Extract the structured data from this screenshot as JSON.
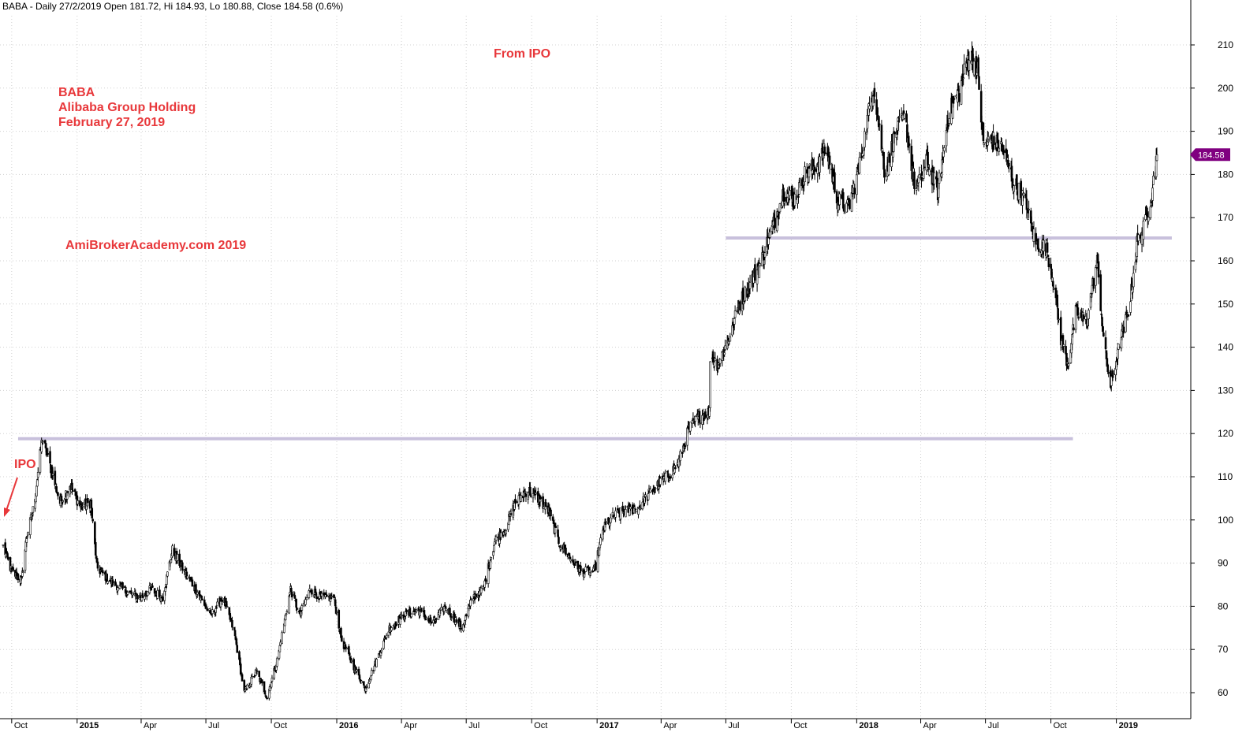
{
  "header": {
    "title": "BABA - Daily 27/2/2019 Open 181.72, Hi 184.93, Lo 180.88, Close 184.58 (0.6%)"
  },
  "annotations": {
    "from_ipo": "From IPO",
    "ticker": "BABA",
    "company": "Alibaba Group Holding",
    "date": "February 27, 2019",
    "watermark": "AmiBrokerAcademy.com  2019",
    "ipo": "IPO",
    "color": "#e8383b"
  },
  "last_price": {
    "label": "184.58",
    "value": 184.58,
    "color": "#800080"
  },
  "chart_data": {
    "type": "line",
    "style": "candlestick",
    "ticker": "BABA",
    "y_range": [
      55,
      215
    ],
    "y_ticks": [
      60,
      70,
      80,
      90,
      100,
      110,
      120,
      130,
      140,
      150,
      160,
      170,
      180,
      190,
      200,
      210
    ],
    "x_ticks": [
      {
        "label": "Oct",
        "date": "2014-10",
        "bold": false
      },
      {
        "label": "2015",
        "date": "2015-01",
        "bold": true
      },
      {
        "label": "Apr",
        "date": "2015-04",
        "bold": false
      },
      {
        "label": "Jul",
        "date": "2015-07",
        "bold": false
      },
      {
        "label": "Oct",
        "date": "2015-10",
        "bold": false
      },
      {
        "label": "2016",
        "date": "2016-01",
        "bold": true
      },
      {
        "label": "Apr",
        "date": "2016-04",
        "bold": false
      },
      {
        "label": "Jul",
        "date": "2016-07",
        "bold": false
      },
      {
        "label": "Oct",
        "date": "2016-10",
        "bold": false
      },
      {
        "label": "2017",
        "date": "2017-01",
        "bold": true
      },
      {
        "label": "Apr",
        "date": "2017-04",
        "bold": false
      },
      {
        "label": "Jul",
        "date": "2017-07",
        "bold": false
      },
      {
        "label": "Oct",
        "date": "2017-10",
        "bold": false
      },
      {
        "label": "2018",
        "date": "2018-01",
        "bold": true
      },
      {
        "label": "Apr",
        "date": "2018-04",
        "bold": false
      },
      {
        "label": "Jul",
        "date": "2018-07",
        "bold": false
      },
      {
        "label": "Oct",
        "date": "2018-10",
        "bold": false
      },
      {
        "label": "2019",
        "date": "2019-01",
        "bold": true
      }
    ],
    "price_points": [
      {
        "date": "2014-09-19",
        "close": 93.9
      },
      {
        "date": "2014-10-01",
        "close": 88
      },
      {
        "date": "2014-10-15",
        "close": 86
      },
      {
        "date": "2014-10-22",
        "close": 96
      },
      {
        "date": "2014-11-01",
        "close": 103
      },
      {
        "date": "2014-11-13",
        "close": 119
      },
      {
        "date": "2014-11-25",
        "close": 112
      },
      {
        "date": "2014-12-08",
        "close": 104
      },
      {
        "date": "2014-12-22",
        "close": 108
      },
      {
        "date": "2015-01-06",
        "close": 103
      },
      {
        "date": "2015-01-20",
        "close": 104
      },
      {
        "date": "2015-01-29",
        "close": 89
      },
      {
        "date": "2015-02-15",
        "close": 86
      },
      {
        "date": "2015-03-15",
        "close": 83
      },
      {
        "date": "2015-04-01",
        "close": 82
      },
      {
        "date": "2015-04-15",
        "close": 84
      },
      {
        "date": "2015-05-01",
        "close": 82
      },
      {
        "date": "2015-05-15",
        "close": 93
      },
      {
        "date": "2015-06-01",
        "close": 88
      },
      {
        "date": "2015-06-20",
        "close": 83
      },
      {
        "date": "2015-07-08",
        "close": 78
      },
      {
        "date": "2015-07-25",
        "close": 82
      },
      {
        "date": "2015-08-10",
        "close": 74
      },
      {
        "date": "2015-08-24",
        "close": 60
      },
      {
        "date": "2015-09-10",
        "close": 65
      },
      {
        "date": "2015-09-25",
        "close": 59
      },
      {
        "date": "2015-10-10",
        "close": 68
      },
      {
        "date": "2015-10-28",
        "close": 84
      },
      {
        "date": "2015-11-10",
        "close": 78
      },
      {
        "date": "2015-11-25",
        "close": 84
      },
      {
        "date": "2015-12-10",
        "close": 82
      },
      {
        "date": "2015-12-28",
        "close": 82
      },
      {
        "date": "2016-01-08",
        "close": 72
      },
      {
        "date": "2016-01-25",
        "close": 66
      },
      {
        "date": "2016-02-10",
        "close": 61
      },
      {
        "date": "2016-02-25",
        "close": 67
      },
      {
        "date": "2016-03-15",
        "close": 75
      },
      {
        "date": "2016-04-05",
        "close": 78
      },
      {
        "date": "2016-04-25",
        "close": 79
      },
      {
        "date": "2016-05-15",
        "close": 76
      },
      {
        "date": "2016-06-01",
        "close": 80
      },
      {
        "date": "2016-06-25",
        "close": 75
      },
      {
        "date": "2016-07-10",
        "close": 82
      },
      {
        "date": "2016-07-25",
        "close": 84
      },
      {
        "date": "2016-08-10",
        "close": 95
      },
      {
        "date": "2016-08-25",
        "close": 98
      },
      {
        "date": "2016-09-08",
        "close": 104
      },
      {
        "date": "2016-09-25",
        "close": 107
      },
      {
        "date": "2016-10-10",
        "close": 105
      },
      {
        "date": "2016-10-25",
        "close": 102
      },
      {
        "date": "2016-11-08",
        "close": 95
      },
      {
        "date": "2016-11-25",
        "close": 91
      },
      {
        "date": "2016-12-10",
        "close": 88
      },
      {
        "date": "2016-12-28",
        "close": 88
      },
      {
        "date": "2017-01-10",
        "close": 98
      },
      {
        "date": "2017-01-25",
        "close": 101
      },
      {
        "date": "2017-02-10",
        "close": 102
      },
      {
        "date": "2017-03-01",
        "close": 103
      },
      {
        "date": "2017-03-20",
        "close": 107
      },
      {
        "date": "2017-04-10",
        "close": 110
      },
      {
        "date": "2017-04-25",
        "close": 113
      },
      {
        "date": "2017-05-10",
        "close": 121
      },
      {
        "date": "2017-05-25",
        "close": 124
      },
      {
        "date": "2017-06-08",
        "close": 125
      },
      {
        "date": "2017-06-09",
        "close": 138
      },
      {
        "date": "2017-06-20",
        "close": 136
      },
      {
        "date": "2017-07-05",
        "close": 142
      },
      {
        "date": "2017-07-20",
        "close": 150
      },
      {
        "date": "2017-08-05",
        "close": 155
      },
      {
        "date": "2017-08-20",
        "close": 160
      },
      {
        "date": "2017-09-05",
        "close": 168
      },
      {
        "date": "2017-09-20",
        "close": 176
      },
      {
        "date": "2017-10-05",
        "close": 174
      },
      {
        "date": "2017-10-20",
        "close": 180
      },
      {
        "date": "2017-11-05",
        "close": 182
      },
      {
        "date": "2017-11-20",
        "close": 186
      },
      {
        "date": "2017-12-05",
        "close": 174
      },
      {
        "date": "2017-12-20",
        "close": 172
      },
      {
        "date": "2018-01-05",
        "close": 182
      },
      {
        "date": "2018-01-25",
        "close": 201
      },
      {
        "date": "2018-02-10",
        "close": 180
      },
      {
        "date": "2018-02-25",
        "close": 190
      },
      {
        "date": "2018-03-10",
        "close": 193
      },
      {
        "date": "2018-03-25",
        "close": 176
      },
      {
        "date": "2018-04-10",
        "close": 183
      },
      {
        "date": "2018-04-25",
        "close": 176
      },
      {
        "date": "2018-05-10",
        "close": 194
      },
      {
        "date": "2018-05-25",
        "close": 199
      },
      {
        "date": "2018-06-08",
        "close": 208
      },
      {
        "date": "2018-06-20",
        "close": 204
      },
      {
        "date": "2018-06-28",
        "close": 187
      },
      {
        "date": "2018-07-10",
        "close": 188
      },
      {
        "date": "2018-07-25",
        "close": 186
      },
      {
        "date": "2018-08-10",
        "close": 178
      },
      {
        "date": "2018-08-25",
        "close": 174
      },
      {
        "date": "2018-09-10",
        "close": 164
      },
      {
        "date": "2018-09-25",
        "close": 163
      },
      {
        "date": "2018-10-05",
        "close": 155
      },
      {
        "date": "2018-10-15",
        "close": 142
      },
      {
        "date": "2018-10-25",
        "close": 136
      },
      {
        "date": "2018-11-05",
        "close": 148
      },
      {
        "date": "2018-11-20",
        "close": 146
      },
      {
        "date": "2018-12-05",
        "close": 160
      },
      {
        "date": "2018-12-15",
        "close": 140
      },
      {
        "date": "2018-12-24",
        "close": 131
      },
      {
        "date": "2019-01-05",
        "close": 140
      },
      {
        "date": "2019-01-20",
        "close": 150
      },
      {
        "date": "2019-01-30",
        "close": 164
      },
      {
        "date": "2019-02-10",
        "close": 168
      },
      {
        "date": "2019-02-20",
        "close": 176
      },
      {
        "date": "2019-02-27",
        "close": 184.58
      }
    ],
    "horizontal_lines": [
      {
        "level": 118.8,
        "from": "2014-10-10",
        "to": "2018-11-01",
        "color": "#c8c0dc"
      },
      {
        "level": 165.3,
        "from": "2017-07-01",
        "to": "2019-03-20",
        "color": "#c8c0dc"
      }
    ],
    "grid": true,
    "legend": "none"
  }
}
